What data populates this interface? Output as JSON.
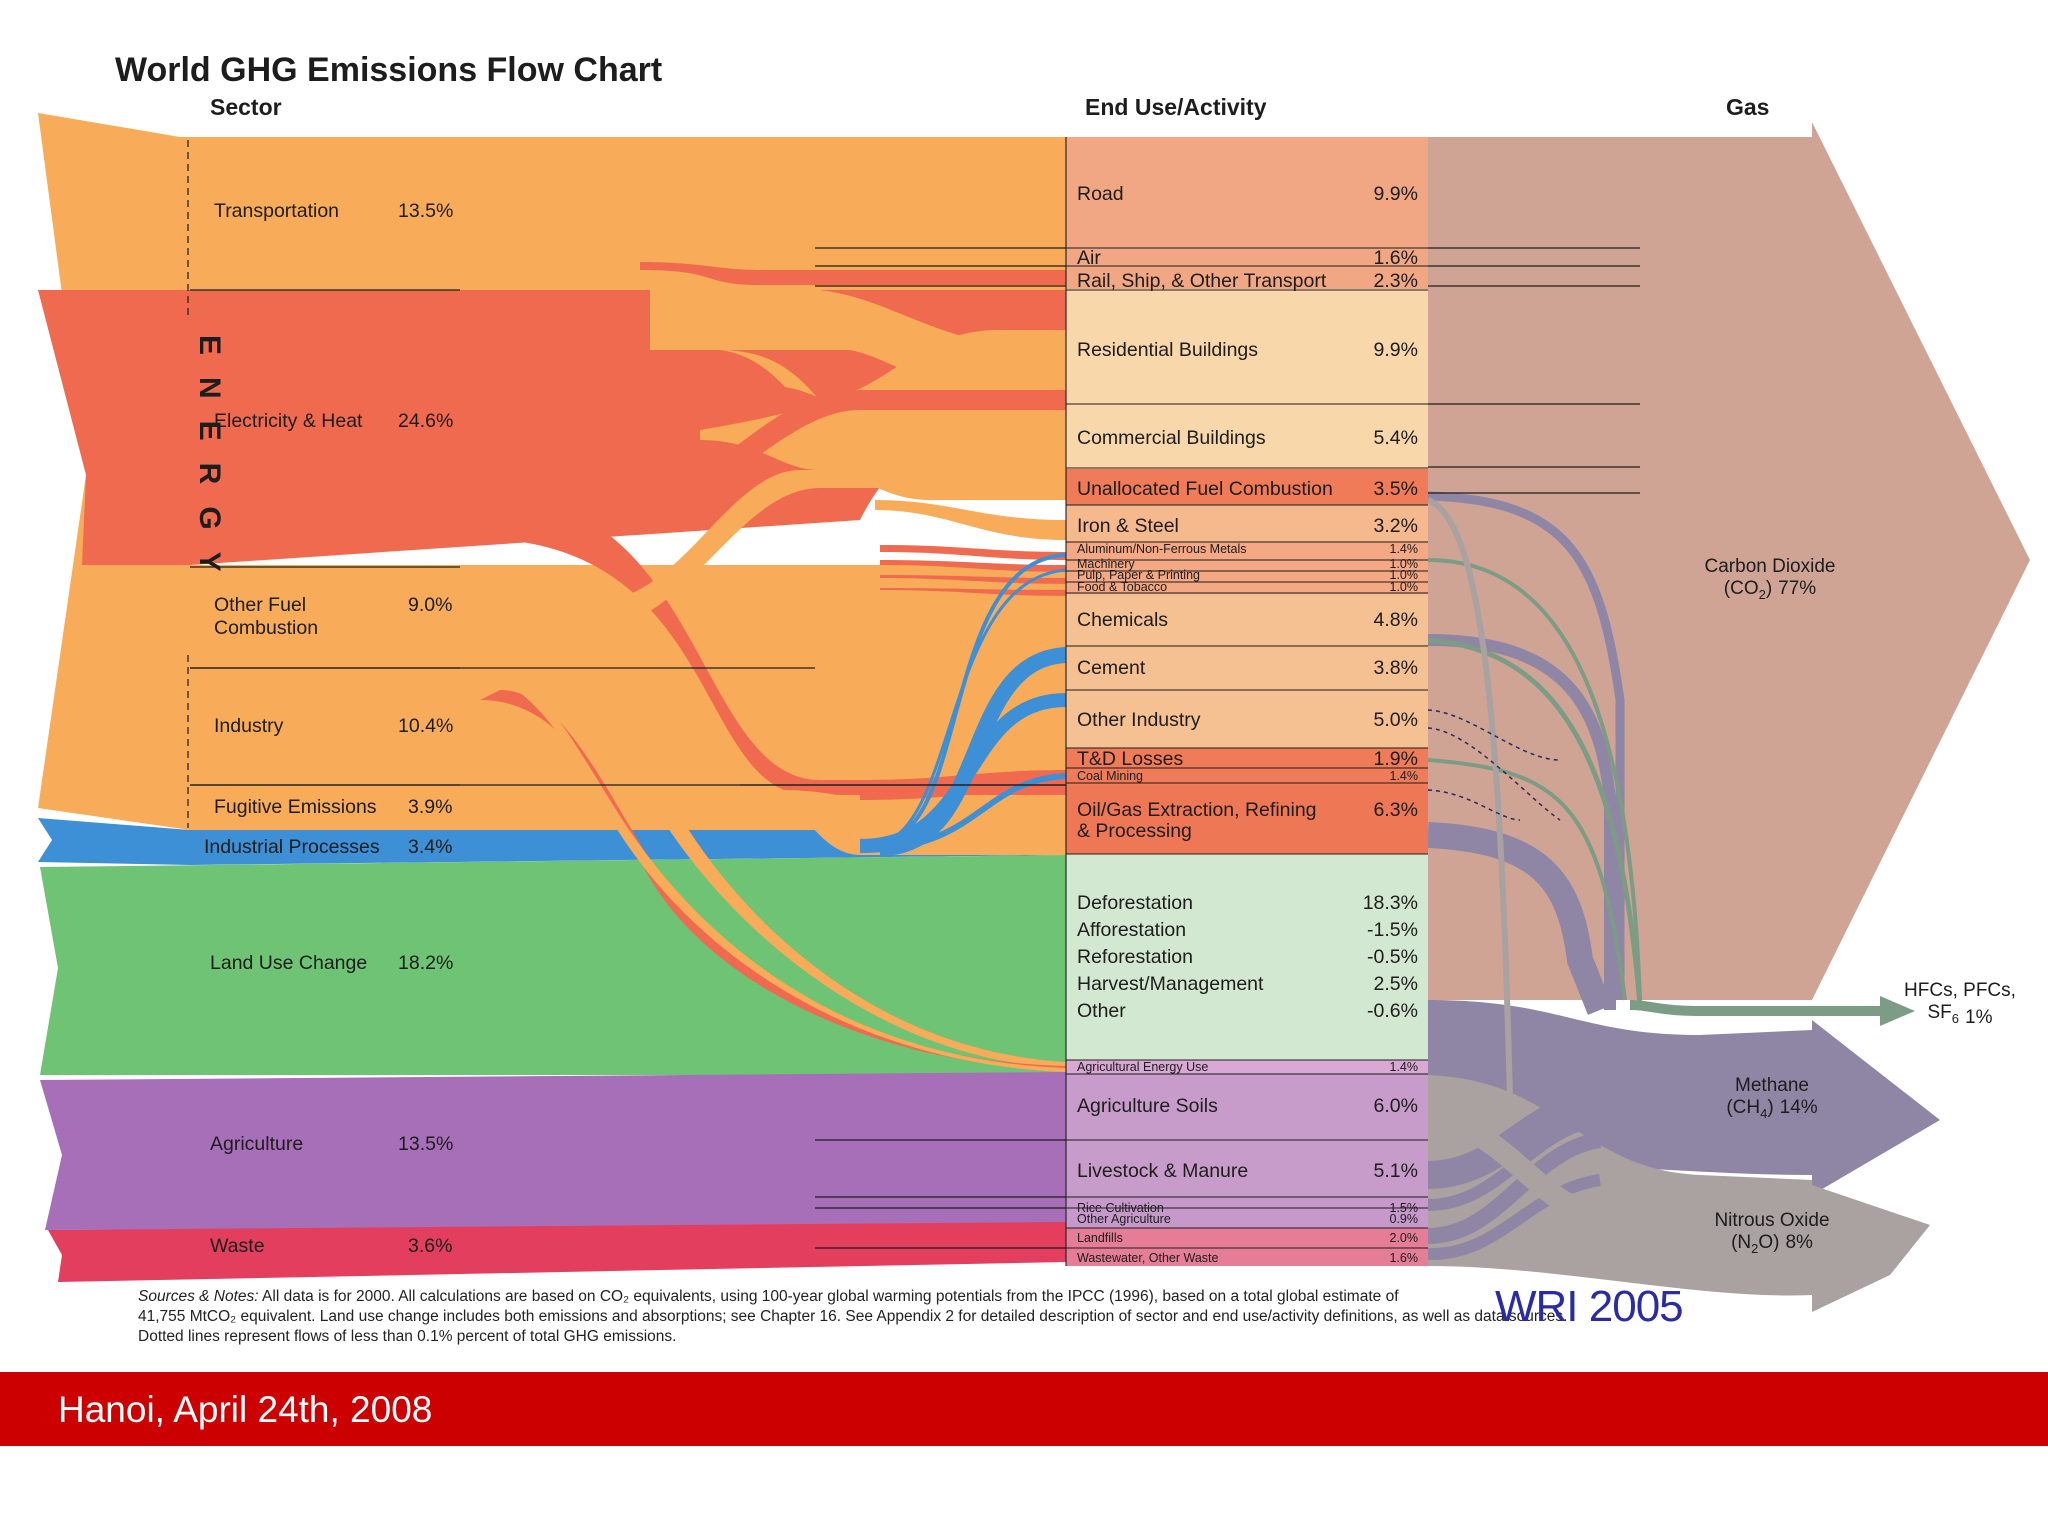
{
  "chart_data": {
    "type": "sankey",
    "title": "World GHG Emissions Flow Chart",
    "column_headers": {
      "sector": "Sector",
      "end_use": "End Use/Activity",
      "gas": "Gas"
    },
    "group_label": "ENERGY",
    "sectors": [
      {
        "name": "Transportation",
        "value": "13.5%",
        "color": "#f8ab58"
      },
      {
        "name": "Electricity & Heat",
        "value": "24.6%",
        "color": "#f06a4f"
      },
      {
        "name": "Other Fuel",
        "name2": "Combustion",
        "value": "9.0%",
        "color": "#f8ab58"
      },
      {
        "name": "Industry",
        "value": "10.4%",
        "color": "#f8ab58"
      },
      {
        "name": "Fugitive Emissions",
        "value": "3.9%",
        "color": "#f8ab58"
      },
      {
        "name": "Industrial Processes",
        "value": "3.4%",
        "color": "#3d8fd6"
      },
      {
        "name": "Land Use Change",
        "value": "18.2%",
        "color": "#6ec374"
      },
      {
        "name": "Agriculture",
        "value": "13.5%",
        "color": "#a66fb8"
      },
      {
        "name": "Waste",
        "value": "3.6%",
        "color": "#e33e5e"
      }
    ],
    "end_uses": [
      {
        "name": "Road",
        "value": "9.9%"
      },
      {
        "name": "Air",
        "value": "1.6%"
      },
      {
        "name": "Rail, Ship, & Other Transport",
        "value": "2.3%"
      },
      {
        "name": "Residential Buildings",
        "value": "9.9%"
      },
      {
        "name": "Commercial Buildings",
        "value": "5.4%"
      },
      {
        "name": "Unallocated Fuel Combustion",
        "value": "3.5%"
      },
      {
        "name": "Iron & Steel",
        "value": "3.2%"
      },
      {
        "name": "Aluminum/Non-Ferrous Metals",
        "value": "1.4%"
      },
      {
        "name": "Machinery",
        "value": "1.0%"
      },
      {
        "name": "Pulp, Paper & Printing",
        "value": "1.0%"
      },
      {
        "name": "Food & Tobacco",
        "value": "1.0%"
      },
      {
        "name": "Chemicals",
        "value": "4.8%"
      },
      {
        "name": "Cement",
        "value": "3.8%"
      },
      {
        "name": "Other Industry",
        "value": "5.0%"
      },
      {
        "name": "T&D Losses",
        "value": "1.9%"
      },
      {
        "name": "Coal Mining",
        "value": "1.4%"
      },
      {
        "name": "Oil/Gas Extraction, Refining",
        "name2": "& Processing",
        "value": "6.3%"
      },
      {
        "name": "Deforestation",
        "value": "18.3%"
      },
      {
        "name": "Afforestation",
        "value": "-1.5%"
      },
      {
        "name": "Reforestation",
        "value": "-0.5%"
      },
      {
        "name": "Harvest/Management",
        "value": "2.5%"
      },
      {
        "name": "Other",
        "value": "-0.6%"
      },
      {
        "name": "Agricultural Energy Use",
        "value": "1.4%"
      },
      {
        "name": "Agriculture Soils",
        "value": "6.0%"
      },
      {
        "name": "Livestock & Manure",
        "value": "5.1%"
      },
      {
        "name": "Rice Cultivation",
        "value": "1.5%"
      },
      {
        "name": "Other Agriculture",
        "value": "0.9%"
      },
      {
        "name": "Landfills",
        "value": "2.0%"
      },
      {
        "name": "Wastewater, Other Waste",
        "value": "1.6%"
      }
    ],
    "gases": [
      {
        "name": "Carbon Dioxide",
        "formula": "(CO",
        "sub": "2",
        "formula_end": ")",
        "value": "77%"
      },
      {
        "name": "HFCs, PFCs,",
        "formula": "SF",
        "sub": "6",
        "formula_end": "",
        "value": "1%"
      },
      {
        "name": "Methane",
        "formula": "(CH",
        "sub": "4",
        "formula_end": ")",
        "value": "14%"
      },
      {
        "name": "Nitrous Oxide",
        "formula": "(N",
        "sub": "2",
        "formula_end": "O)",
        "value": "8%"
      }
    ],
    "colors": {
      "energy": "#f8ab58",
      "electricity": "#f06a4f",
      "industrial": "#3d8fd6",
      "landuse": "#6ec374",
      "agriculture": "#a66fb8",
      "waste": "#e33e5e",
      "co2": "#cfa495",
      "methane": "#8f86a6",
      "n2o": "#aaa1a1",
      "hfc": "#7d9c85"
    }
  },
  "notes": {
    "label": "Sources & Notes:",
    "line1": " All data is for 2000.  All calculations are based on CO₂ equivalents, using 100-year global warming potentials from the IPCC (1996), based on a total global estimate of",
    "line2": "41,755 MtCO₂ equivalent.  Land use change includes both emissions and absorptions; see Chapter 16.  See Appendix 2 for detailed description of sector and end use/activity definitions, as well as data sources.",
    "line3": "Dotted lines represent flows of less than 0.1% percent of total GHG emissions."
  },
  "source_credit": "WRI 2005",
  "footer": {
    "text": "Hanoi, April 24th, 2008"
  }
}
